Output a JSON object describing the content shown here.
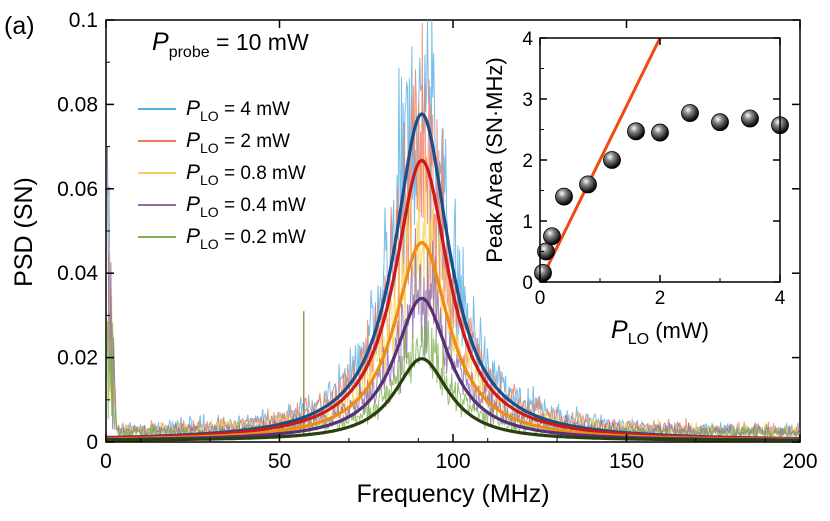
{
  "chart_data": [
    {
      "type": "line",
      "panel_label": "(a)",
      "title": "",
      "annotation": {
        "symbol": "P",
        "subscript": "probe",
        "text": " = 10 mW"
      },
      "xlabel": "Frequency (MHz)",
      "ylabel": "PSD (SN)",
      "xlim": [
        0,
        200
      ],
      "ylim": [
        0,
        0.1
      ],
      "xticks": [
        "0",
        "50",
        "100",
        "150",
        "200"
      ],
      "yticks": [
        "0",
        "0.02",
        "0.04",
        "0.06",
        "0.08",
        "0.1"
      ],
      "xtick_values": [
        0,
        50,
        100,
        150,
        200
      ],
      "ytick_values": [
        0,
        0.02,
        0.04,
        0.06,
        0.08,
        0.1
      ],
      "legend_position": "upper-left",
      "peak_center": 91,
      "lorentz_halfwidth": 9.5,
      "noise_floor": 0.0012,
      "series": [
        {
          "name": "P_LO = 4 mW",
          "symbol": "P",
          "subscript": "LO",
          "suffix": " = 4 mW",
          "peak": 0.0775,
          "noise_color": "#56aee2",
          "fit_color": "#1b4f8c"
        },
        {
          "name": "P_LO = 2 mW",
          "symbol": "P",
          "subscript": "LO",
          "suffix": " = 2 mW",
          "peak": 0.0665,
          "noise_color": "#ee7a62",
          "fit_color": "#cc1a1a"
        },
        {
          "name": "P_LO = 0.8 mW",
          "symbol": "P",
          "subscript": "LO",
          "suffix": " = 0.8 mW",
          "peak": 0.047,
          "noise_color": "#f6d25c",
          "fit_color": "#f08c14"
        },
        {
          "name": "P_LO = 0.4 mW",
          "symbol": "P",
          "subscript": "LO",
          "suffix": " = 0.4 mW",
          "peak": 0.0338,
          "noise_color": "#8c6ca6",
          "fit_color": "#56307a"
        },
        {
          "name": "P_LO = 0.2 mW",
          "symbol": "P",
          "subscript": "LO",
          "suffix": " = 0.2 mW",
          "peak": 0.0195,
          "noise_color": "#80b050",
          "fit_color": "#2b3e10"
        }
      ]
    },
    {
      "type": "scatter",
      "title": "",
      "xlabel_symbol": "P",
      "xlabel_subscript": "LO",
      "xlabel_suffix": " (mW)",
      "ylabel": "Peak Area (SN·MHz)",
      "xlim": [
        0,
        4
      ],
      "ylim": [
        0,
        4
      ],
      "xticks": [
        "0",
        "2",
        "4"
      ],
      "yticks": [
        "0",
        "1",
        "2",
        "3",
        "4"
      ],
      "xtick_values": [
        0,
        2,
        4
      ],
      "ytick_values": [
        0,
        1,
        2,
        3,
        4
      ],
      "points": {
        "x": [
          0.05,
          0.1,
          0.2,
          0.4,
          0.8,
          1.2,
          1.6,
          2.0,
          2.5,
          3.0,
          3.5,
          4.0
        ],
        "y": [
          0.15,
          0.5,
          0.75,
          1.4,
          1.6,
          2.0,
          2.47,
          2.45,
          2.77,
          2.62,
          2.68,
          2.57
        ]
      },
      "fit_line": {
        "x": [
          0,
          2.0
        ],
        "y": [
          0,
          4.0
        ],
        "color": "#f04a14"
      }
    }
  ]
}
